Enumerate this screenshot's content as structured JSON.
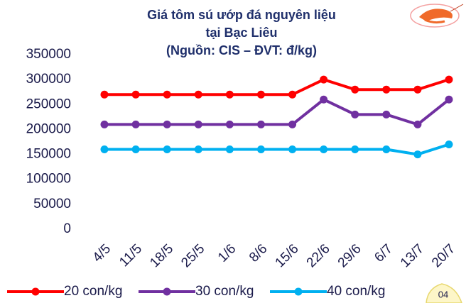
{
  "chart_data": {
    "type": "line",
    "title": [
      "Giá tôm sú ướp đá nguyên liệu",
      "tại Bạc Liêu",
      "(Nguồn: CIS – ĐVT: đ/kg)"
    ],
    "categories": [
      "4/5",
      "11/5",
      "18/5",
      "25/5",
      "1/6",
      "8/6",
      "15/6",
      "22/6",
      "29/6",
      "6/7",
      "13/7",
      "20/7"
    ],
    "series": [
      {
        "name": "20 con/kg",
        "color": "#ff0000",
        "values": [
          270000,
          270000,
          270000,
          270000,
          270000,
          270000,
          270000,
          300000,
          280000,
          280000,
          280000,
          300000
        ]
      },
      {
        "name": "30 con/kg",
        "color": "#7030a0",
        "values": [
          210000,
          210000,
          210000,
          210000,
          210000,
          210000,
          210000,
          260000,
          230000,
          230000,
          210000,
          260000
        ]
      },
      {
        "name": "40 con/kg",
        "color": "#00b0f0",
        "values": [
          160000,
          160000,
          160000,
          160000,
          160000,
          160000,
          160000,
          160000,
          160000,
          160000,
          150000,
          170000
        ]
      }
    ],
    "ylim": [
      0,
      350000
    ],
    "yticks": [
      0,
      50000,
      100000,
      150000,
      200000,
      250000,
      300000,
      350000
    ],
    "grid": false,
    "page_number": "04"
  }
}
